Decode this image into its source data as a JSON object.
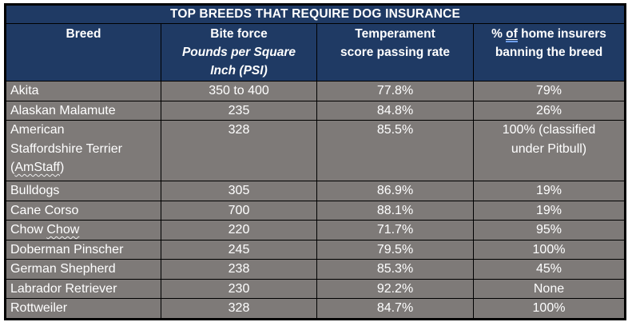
{
  "title": "TOP BREEDS THAT REQUIRE DOG INSURANCE",
  "colors": {
    "header_navy": "#1f3a64",
    "row_gray": "#7e7a78",
    "grid_border": "#000000",
    "text_white": "#ffffff",
    "grammar_underline_blue": "#6d9eeb",
    "spellcheck_wavy_white": "#ededed"
  },
  "header": {
    "breed_label": "Breed",
    "bite_force_label": "Bite force",
    "bite_force_sub_lines": [
      "Pounds per Square",
      "Inch (PSI)"
    ],
    "temperament_lines": [
      "Temperament",
      "score passing rate"
    ],
    "insurers_prefix": "% ",
    "insurers_underlined": "of",
    "insurers_suffix": " home insurers banning the breed"
  },
  "rows": [
    {
      "breed_pre": "Akita",
      "breed_wavy": "",
      "breed_post": "",
      "bite_force": "350 to 400",
      "temperament": "77.8%",
      "ban_rate": "79%"
    },
    {
      "breed_pre": "Alaskan Malamute",
      "breed_wavy": "",
      "breed_post": "",
      "bite_force": "235",
      "temperament": "84.8%",
      "ban_rate": "26%"
    },
    {
      "breed_pre": "American Staffordshire Terrier (",
      "breed_wavy": "AmStaff",
      "breed_post": ")",
      "bite_force": "328",
      "temperament": "85.5%",
      "ban_rate": "100% (classified under Pitbull)"
    },
    {
      "breed_pre": "Bulldogs",
      "breed_wavy": "",
      "breed_post": "",
      "bite_force": "305",
      "temperament": "86.9%",
      "ban_rate": "19%"
    },
    {
      "breed_pre": "Cane Corso",
      "breed_wavy": "",
      "breed_post": "",
      "bite_force": "700",
      "temperament": "88.1%",
      "ban_rate": "19%"
    },
    {
      "breed_pre": "Chow ",
      "breed_wavy": "Chow",
      "breed_post": "",
      "bite_force": "220",
      "temperament": "71.7%",
      "ban_rate": "95%"
    },
    {
      "breed_pre": "Doberman Pinscher",
      "breed_wavy": "",
      "breed_post": "",
      "bite_force": "245",
      "temperament": "79.5%",
      "ban_rate": "100%"
    },
    {
      "breed_pre": "German Shepherd",
      "breed_wavy": "",
      "breed_post": "",
      "bite_force": "238",
      "temperament": "85.3%",
      "ban_rate": "45%"
    },
    {
      "breed_pre": "Labrador Retriever",
      "breed_wavy": "",
      "breed_post": "",
      "bite_force": "230",
      "temperament": "92.2%",
      "ban_rate": "None"
    },
    {
      "breed_pre": "Rottweiler",
      "breed_wavy": "",
      "breed_post": "",
      "bite_force": "328",
      "temperament": "84.7%",
      "ban_rate": "100%"
    }
  ],
  "chart_data": {
    "type": "table",
    "title": "TOP BREEDS THAT REQUIRE DOG INSURANCE",
    "columns": [
      "Breed",
      "Bite force Pounds per Square Inch (PSI)",
      "Temperament score passing rate",
      "% of home insurers banning the breed"
    ],
    "rows": [
      [
        "Akita",
        "350 to 400",
        "77.8%",
        "79%"
      ],
      [
        "Alaskan Malamute",
        "235",
        "84.8%",
        "26%"
      ],
      [
        "American Staffordshire Terrier (AmStaff)",
        "328",
        "85.5%",
        "100% (classified under Pitbull)"
      ],
      [
        "Bulldogs",
        "305",
        "86.9%",
        "19%"
      ],
      [
        "Cane Corso",
        "700",
        "88.1%",
        "19%"
      ],
      [
        "Chow Chow",
        "220",
        "71.7%",
        "95%"
      ],
      [
        "Doberman Pinscher",
        "245",
        "79.5%",
        "100%"
      ],
      [
        "German Shepherd",
        "238",
        "85.3%",
        "45%"
      ],
      [
        "Labrador Retriever",
        "230",
        "92.2%",
        "None"
      ],
      [
        "Rottweiler",
        "328",
        "84.7%",
        "100%"
      ]
    ]
  }
}
